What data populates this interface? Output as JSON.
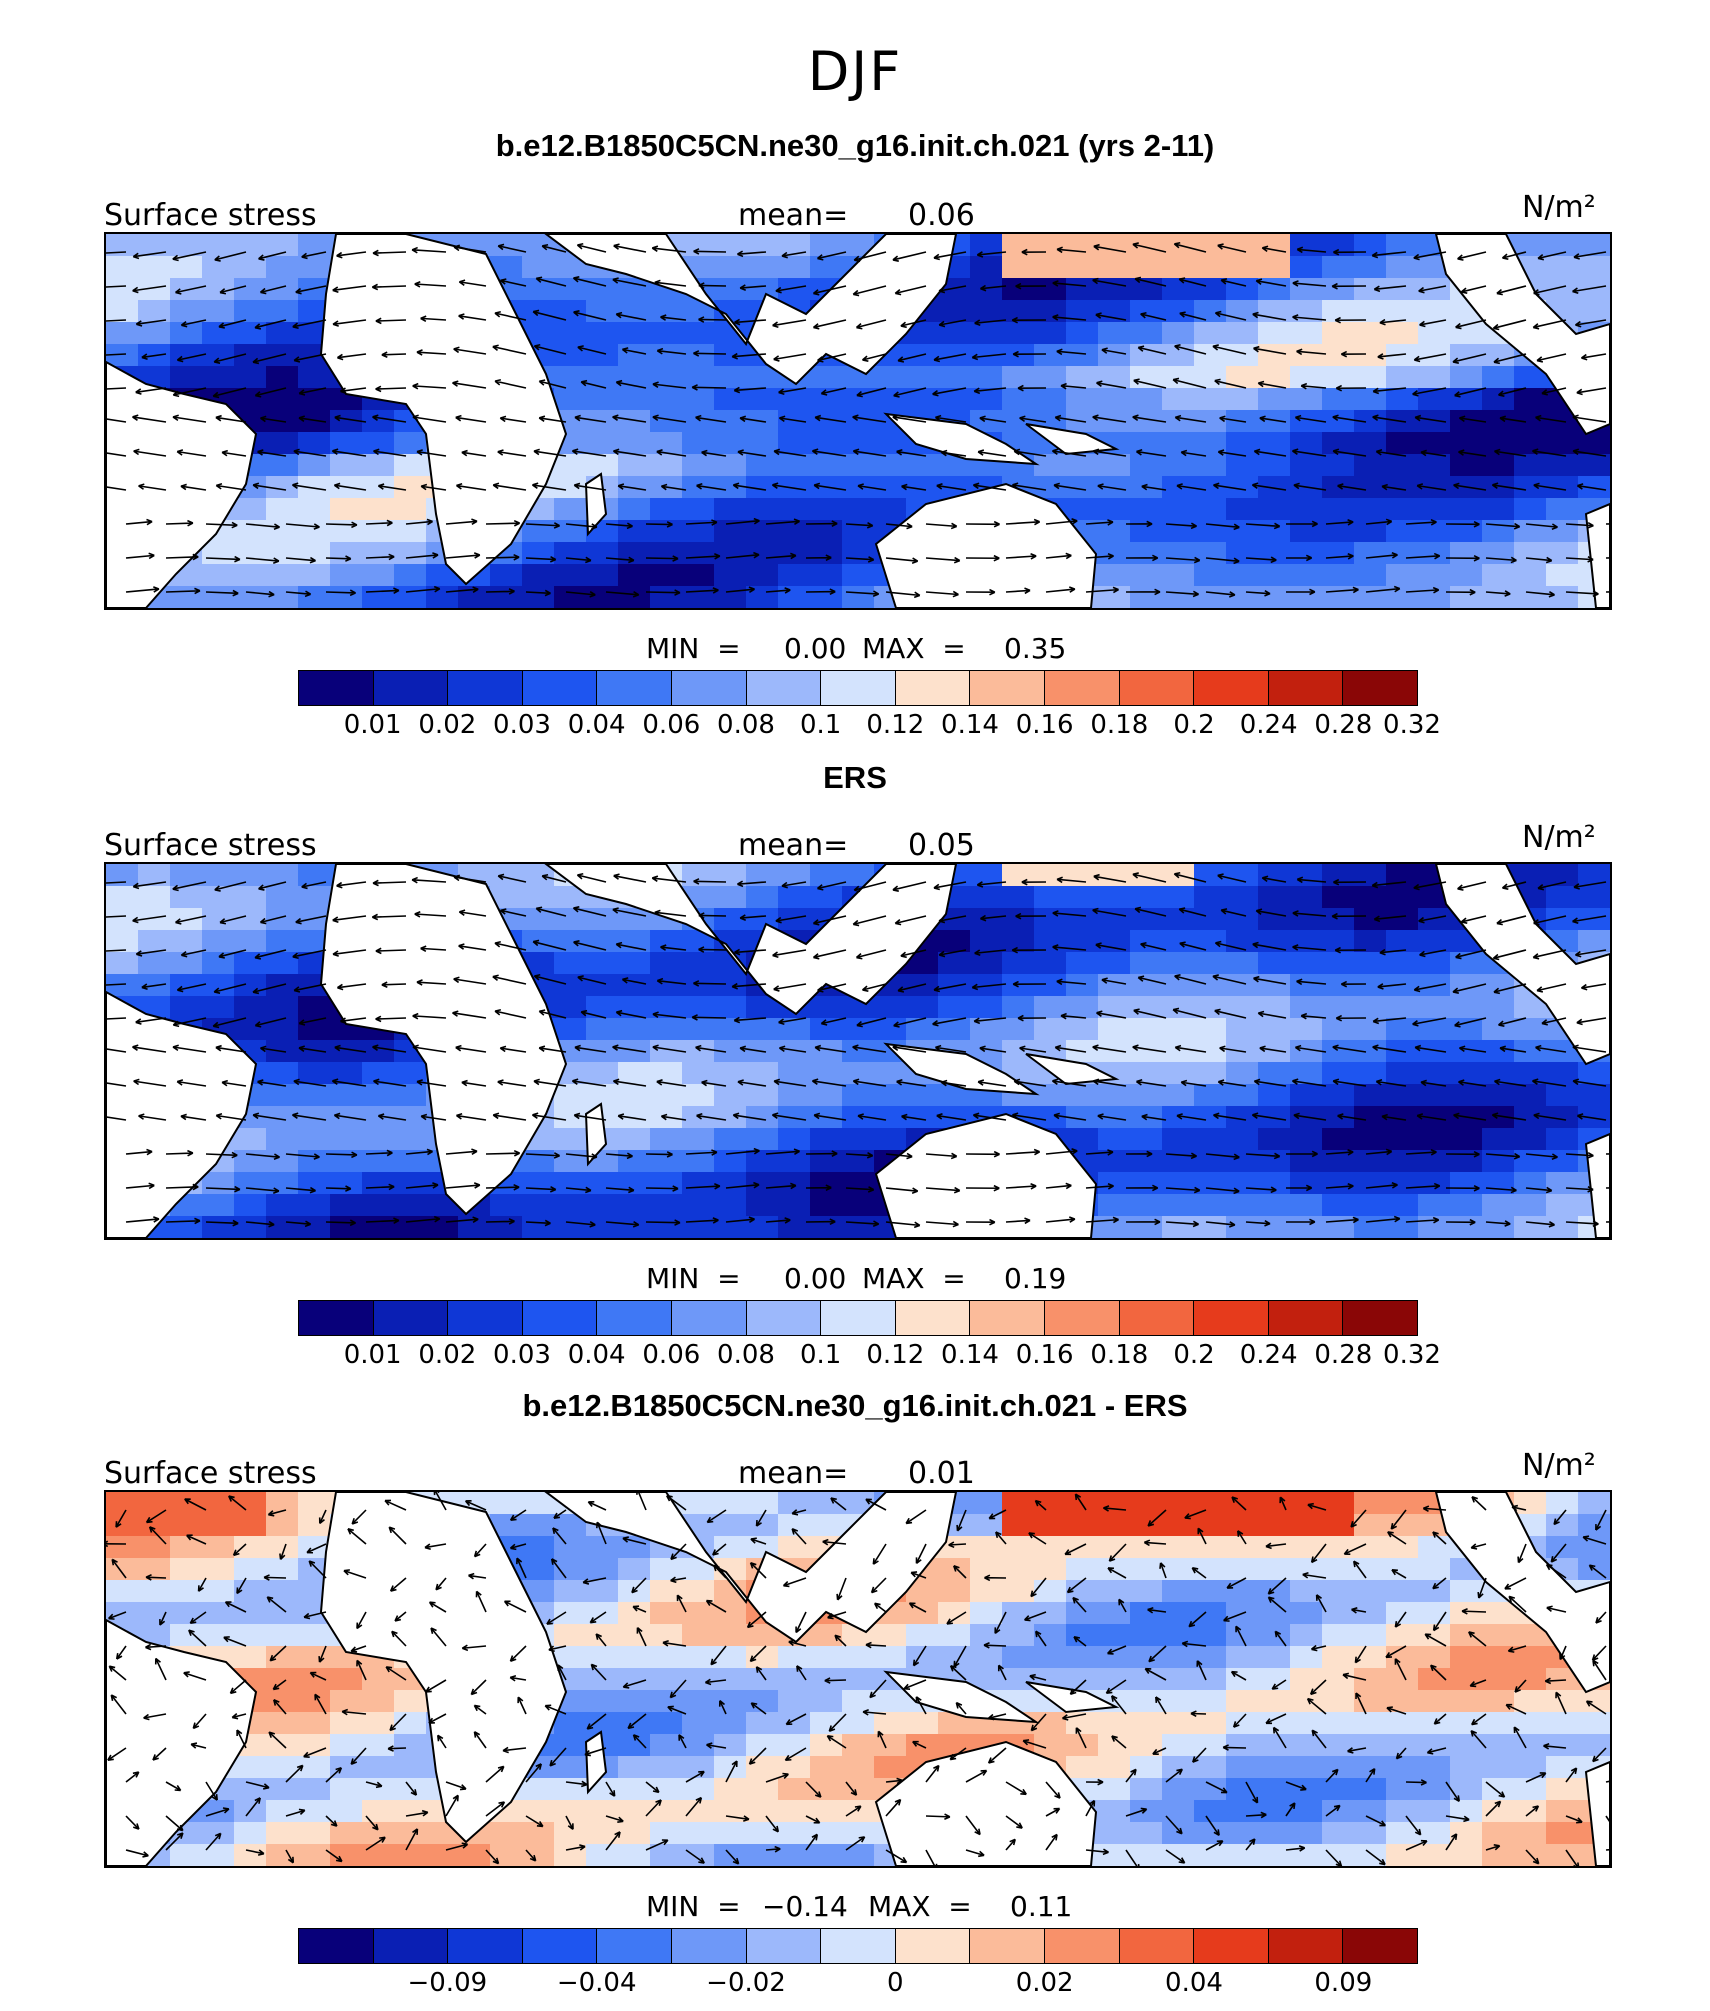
{
  "season": "DJF",
  "palette": [
    "#08007a",
    "#0a1fb4",
    "#0f37d6",
    "#1e55f0",
    "#3f78f5",
    "#6e98f8",
    "#9cb8fb",
    "#d3e3fd",
    "#fde1cc",
    "#fbbb9a",
    "#f8916a",
    "#f2663f",
    "#e63b1c",
    "#c2200e",
    "#8a0606"
  ],
  "land_color": "#ffffff",
  "arrow_color": "#000000",
  "panels": [
    {
      "title": "b.e12.B1850C5CN.ne30_g16.init.ch.021 (yrs 2-11)",
      "left_label": "Surface stress",
      "mean_label": "mean=",
      "mean_value": "0.06",
      "units": "N/m²",
      "min_label": "MIN  =",
      "min_value": "0.00",
      "max_label": "MAX  =",
      "max_value": "0.35",
      "colorbar_ticks": [
        "0.01",
        "0.02",
        "0.03",
        "0.04",
        "0.06",
        "0.08",
        "0.1",
        "0.12",
        "0.14",
        "0.16",
        "0.18",
        "0.2",
        "0.24",
        "0.28",
        "0.32"
      ]
    },
    {
      "title": "ERS",
      "left_label": "Surface stress",
      "mean_label": "mean=",
      "mean_value": "0.05",
      "units": "N/m²",
      "min_label": "MIN  =",
      "min_value": "0.00",
      "max_label": "MAX  =",
      "max_value": "0.19",
      "colorbar_ticks": [
        "0.01",
        "0.02",
        "0.03",
        "0.04",
        "0.06",
        "0.08",
        "0.1",
        "0.12",
        "0.14",
        "0.16",
        "0.18",
        "0.2",
        "0.24",
        "0.28",
        "0.32"
      ]
    },
    {
      "title": "b.e12.B1850C5CN.ne30_g16.init.ch.021 - ERS",
      "left_label": "Surface stress",
      "mean_label": "mean=",
      "mean_value": "0.01",
      "units": "N/m²",
      "min_label": "MIN  =",
      "min_value": "−0.14",
      "max_label": "MAX  =",
      "max_value": "0.11",
      "colorbar_ticks": [
        "−0.09",
        "−0.04",
        "−0.02",
        "0",
        "0.02",
        "0.04",
        "0.09"
      ]
    }
  ]
}
